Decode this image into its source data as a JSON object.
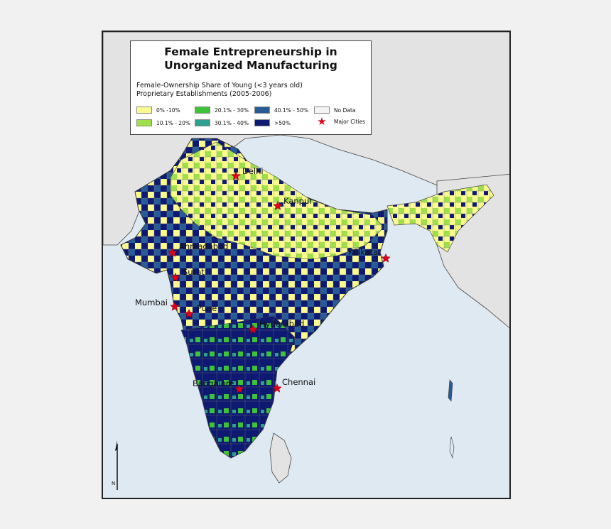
{
  "map": {
    "title_line1": "Female Entrepreneurship in",
    "title_line2": "Unorganized Manufacturing",
    "subtitle_line1": "Female-Ownership Share of Young (<3 years old)",
    "subtitle_line2": "Proprietary Establishments (2005-2006)",
    "north_label": "N",
    "colors": {
      "c1": "#fbfa8e",
      "c2": "#9fe04a",
      "c3": "#3ec23a",
      "c4": "#2fa090",
      "c5": "#285c96",
      "c6": "#0e1a72",
      "nodata": "#f4f4f4",
      "star": "#e0001a",
      "sea": "#dfe9f2",
      "land_other": "#e3e3e3"
    },
    "legend": [
      {
        "label": "0% -10%",
        "color_key": "c1"
      },
      {
        "label": "10.1% - 20%",
        "color_key": "c2"
      },
      {
        "label": "20.1% - 30%",
        "color_key": "c3"
      },
      {
        "label": "30.1% - 40%",
        "color_key": "c4"
      },
      {
        "label": "40.1% - 50%",
        "color_key": "c5"
      },
      {
        "label": ">50%",
        "color_key": "c6"
      },
      {
        "label": "No Data",
        "color_key": "nodata"
      },
      {
        "label": "Major Cities",
        "color_key": "star"
      }
    ],
    "cities": [
      {
        "name": "Delhi"
      },
      {
        "name": "Kanpur"
      },
      {
        "name": "Ahmadabad"
      },
      {
        "name": "Kolkata"
      },
      {
        "name": "Surat"
      },
      {
        "name": "Mumbai"
      },
      {
        "name": "Pune"
      },
      {
        "name": "Hyderabad"
      },
      {
        "name": "Bangalore"
      },
      {
        "name": "Chennai"
      }
    ]
  }
}
